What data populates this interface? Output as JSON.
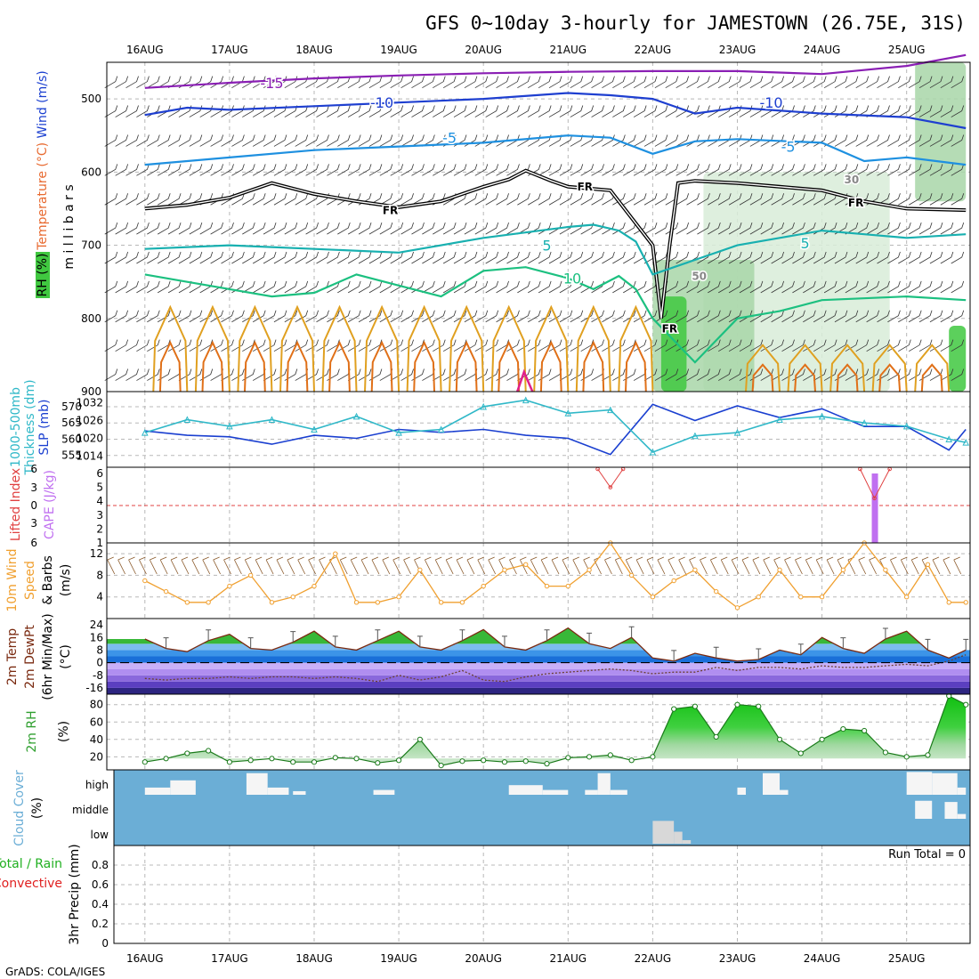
{
  "title": "GFS 0~10day 3-hourly for JAMESTOWN (26.75E, 31S)",
  "credit": "GrADS: COLA/IGES",
  "dates": [
    "16AUG",
    "17AUG",
    "18AUG",
    "19AUG",
    "20AUG",
    "21AUG",
    "22AUG",
    "23AUG",
    "24AUG",
    "25AUG"
  ],
  "colors": {
    "grid": "#b8b8b8",
    "temp_minus15": "#8a1fb4",
    "temp_minus10": "#1e3fd0",
    "temp_minus5": "#1e90e0",
    "freezing": "#000000",
    "temp_5": "#18b0b0",
    "temp_10": "#1cc080",
    "warm_a": "#e0a020",
    "warm_b": "#e07018",
    "warm_c": "#e0208a",
    "rh_light": "#d8ecd8",
    "rh_mid": "#a8d6a8",
    "rh_high": "#40c840",
    "slp": "#1a3fd0",
    "thickness": "#30b8c8",
    "wind_speed": "#f0a030",
    "cape_bar": "#c070f0",
    "lifted_index": "#e04040",
    "cloud_bg": "#6baed6",
    "cloud_fill": "#f5f5f5",
    "rh2m": "#30a030"
  },
  "chart_data": [
    {
      "panel": "upper_air",
      "type": "heatmap",
      "ylabel": "m i l l i b a r s",
      "side_labels": {
        "wind": "Wind (m/s)",
        "temp": "Temperature (°C)",
        "rh": "RH (%)"
      },
      "yticks": [
        500,
        600,
        700,
        800,
        900
      ],
      "ylim": [
        450,
        900
      ],
      "y_inverted": true,
      "contour_labels": [
        "-15",
        "-10",
        "-10",
        "-5",
        "-5",
        "5",
        "5",
        "10",
        "FR",
        "FR",
        "FR",
        "FR",
        "30",
        "50"
      ],
      "contours": [
        {
          "name": "-15",
          "color": "temp_minus15",
          "x": [
            0,
            1,
            2,
            3,
            4,
            5,
            6,
            7,
            8,
            9,
            9.7
          ],
          "y": [
            485,
            478,
            472,
            468,
            465,
            463,
            462,
            462,
            466,
            455,
            440
          ]
        },
        {
          "name": "-10",
          "color": "temp_minus10",
          "x": [
            0,
            0.5,
            1,
            2,
            3,
            4,
            5,
            5.5,
            6,
            6.5,
            7,
            8,
            9,
            9.7
          ],
          "y": [
            522,
            512,
            515,
            510,
            505,
            500,
            492,
            495,
            500,
            520,
            512,
            520,
            525,
            540
          ]
        },
        {
          "name": "-5",
          "color": "temp_minus5",
          "x": [
            0,
            1,
            2,
            3,
            4,
            5,
            5.5,
            6,
            6.5,
            7,
            8,
            8.5,
            9,
            9.7
          ],
          "y": [
            590,
            580,
            570,
            565,
            560,
            550,
            553,
            575,
            558,
            555,
            560,
            585,
            580,
            590
          ]
        },
        {
          "name": "FR",
          "color": "freezing",
          "x": [
            0,
            0.5,
            1,
            1.5,
            2,
            2.5,
            3,
            3.5,
            4,
            4.3,
            4.5,
            4.8,
            5,
            5.5,
            6.0,
            6.1,
            6.2,
            6.3,
            6.5,
            7,
            7.5,
            8,
            8.5,
            9,
            9.7
          ],
          "y": [
            650,
            645,
            635,
            615,
            630,
            640,
            648,
            640,
            620,
            610,
            598,
            612,
            620,
            625,
            700,
            800,
            700,
            615,
            612,
            615,
            620,
            625,
            640,
            650,
            652
          ]
        },
        {
          "name": "5",
          "color": "temp_5",
          "x": [
            0,
            1,
            2,
            3,
            4,
            5,
            5.3,
            5.6,
            5.8,
            6,
            6.5,
            7,
            7.5,
            8,
            8.5,
            9,
            9.7
          ],
          "y": [
            705,
            700,
            705,
            710,
            690,
            675,
            672,
            680,
            695,
            740,
            720,
            700,
            690,
            680,
            685,
            690,
            685
          ]
        },
        {
          "name": "10",
          "color": "temp_10",
          "x": [
            0,
            0.5,
            1,
            1.5,
            2,
            2.5,
            3,
            3.5,
            4,
            4.5,
            5,
            5.3,
            5.6,
            5.8,
            6,
            6.5,
            7,
            7.5,
            8,
            9,
            9.7
          ],
          "y": [
            740,
            750,
            760,
            770,
            765,
            740,
            755,
            770,
            735,
            730,
            745,
            760,
            742,
            760,
            800,
            860,
            800,
            790,
            775,
            770,
            775
          ]
        }
      ],
      "rh_patches": [
        {
          "x": [
            6.1,
            6.4
          ],
          "y": [
            770,
            900
          ],
          "level": "rh_high"
        },
        {
          "x": [
            6.0,
            7.2
          ],
          "y": [
            720,
            900
          ],
          "level": "rh_mid"
        },
        {
          "x": [
            6.6,
            8.8
          ],
          "y": [
            600,
            900
          ],
          "level": "rh_light"
        },
        {
          "x": [
            9.1,
            9.7
          ],
          "y": [
            450,
            640
          ],
          "level": "rh_mid"
        },
        {
          "x": [
            9.5,
            9.7
          ],
          "y": [
            810,
            900
          ],
          "level": "rh_high"
        }
      ],
      "x_range": [
        -0.45,
        9.75
      ]
    },
    {
      "panel": "slp_thickness",
      "type": "line",
      "ylabel_left": "Thickness (dm)",
      "ylabel_left_prefix": "1000-500mb",
      "ylabel_right": "SLP (mb)",
      "yticks_left": [
        555,
        560,
        565,
        570
      ],
      "yticks_right": [
        1014,
        1020,
        1026,
        1032
      ],
      "series": [
        {
          "name": "SLP (mb)",
          "color": "slp",
          "x": [
            0,
            0.5,
            1,
            1.5,
            2,
            2.5,
            3,
            3.5,
            4,
            4.5,
            5,
            5.5,
            6,
            6.5,
            7,
            7.5,
            8,
            8.5,
            9,
            9.5,
            9.7
          ],
          "values": [
            1022.5,
            1021,
            1020.5,
            1018,
            1021,
            1020,
            1023,
            1022,
            1023,
            1021,
            1020,
            1014.5,
            1031.5,
            1026,
            1031,
            1027,
            1030,
            1024,
            1024,
            1016,
            1023
          ]
        },
        {
          "name": "Thickness (dm)",
          "color": "thickness",
          "x": [
            0,
            0.5,
            1,
            1.5,
            2,
            2.5,
            3,
            3.5,
            4,
            4.5,
            5,
            5.5,
            6,
            6.5,
            7,
            7.5,
            8,
            8.5,
            9,
            9.5,
            9.7
          ],
          "values": [
            562,
            566,
            564,
            566,
            563,
            567,
            562,
            563,
            570,
            572,
            568,
            569,
            556,
            561,
            562,
            566,
            567,
            565,
            564,
            560,
            559
          ]
        }
      ]
    },
    {
      "panel": "cape_li",
      "type": "bar",
      "ylabel_left": "Lifted Index",
      "ylabel_right": "CAPE (J/kg)",
      "yticks_left": [
        "6",
        "3",
        "0",
        "3",
        "6"
      ],
      "yticks_right": [
        "1",
        "2",
        "3",
        "4",
        "5",
        "6"
      ],
      "bars": [
        {
          "x": 8.62,
          "value": 6
        }
      ],
      "li_series": {
        "x": [
          5.35,
          5.5,
          5.65,
          8.45,
          8.62,
          8.8
        ],
        "values": [
          -6,
          -3,
          -6,
          -6,
          -1.2,
          -6
        ]
      },
      "zero_line": true
    },
    {
      "panel": "wind10m",
      "type": "line",
      "ylabel": "10m Wind Speed & Barbs (m/s)",
      "yticks": [
        4,
        8,
        12
      ],
      "ylim": [
        0,
        14
      ],
      "x": [
        0,
        0.25,
        0.5,
        0.75,
        1,
        1.25,
        1.5,
        1.75,
        2,
        2.25,
        2.5,
        2.75,
        3,
        3.25,
        3.5,
        3.75,
        4,
        4.25,
        4.5,
        4.75,
        5,
        5.25,
        5.5,
        5.75,
        6,
        6.25,
        6.5,
        6.75,
        7,
        7.25,
        7.5,
        7.75,
        8,
        8.25,
        8.5,
        8.75,
        9,
        9.25,
        9.5,
        9.7
      ],
      "values": [
        7,
        5,
        3,
        3,
        6,
        8,
        3,
        4,
        6,
        12,
        3,
        3,
        4,
        9,
        3,
        3,
        6,
        9,
        10,
        6,
        6,
        9,
        14,
        8,
        4,
        7,
        9,
        5,
        2,
        4,
        9,
        4,
        4,
        9,
        14,
        9,
        4,
        10,
        3,
        3
      ]
    },
    {
      "panel": "temp2m",
      "type": "area",
      "ylabel": "2m Temp 2m DewPt (6hr Min/Max) (°C)",
      "yticks": [
        -16,
        -8,
        0,
        8,
        16,
        24
      ],
      "ylim": [
        -20,
        28
      ],
      "x": [
        0,
        0.25,
        0.5,
        0.75,
        1,
        1.25,
        1.5,
        1.75,
        2,
        2.25,
        2.5,
        2.75,
        3,
        3.25,
        3.5,
        3.75,
        4,
        4.25,
        4.5,
        4.75,
        5,
        5.25,
        5.5,
        5.75,
        6,
        6.25,
        6.5,
        6.75,
        7,
        7.25,
        7.5,
        7.75,
        8,
        8.25,
        8.5,
        8.75,
        9,
        9.25,
        9.5,
        9.7
      ],
      "temp": [
        15,
        9,
        7,
        14,
        18,
        9,
        8,
        13,
        20,
        10,
        8,
        14,
        20,
        10,
        8,
        14,
        21,
        10,
        8,
        14,
        22,
        12,
        9,
        16,
        3,
        1,
        6,
        3,
        1,
        2,
        8,
        5,
        16,
        9,
        6,
        15,
        20,
        8,
        3,
        8
      ],
      "dewpt": [
        -10,
        -11,
        -10,
        -10,
        -9,
        -10,
        -9,
        -9,
        -10,
        -9,
        -10,
        -12,
        -8,
        -11,
        -9,
        -5,
        -11,
        -12,
        -9,
        -7,
        -6,
        -5,
        -4,
        -5,
        -7,
        -6,
        -6,
        -3,
        -5,
        -3,
        -3,
        -4,
        -2,
        -3,
        -3,
        -2,
        -1,
        -2,
        1,
        5
      ]
    },
    {
      "panel": "rh2m",
      "type": "area",
      "ylabel": "2m RH (%)",
      "yticks": [
        20,
        40,
        60,
        80
      ],
      "ylim": [
        5,
        92
      ],
      "x": [
        0,
        0.25,
        0.5,
        0.75,
        1,
        1.25,
        1.5,
        1.75,
        2,
        2.25,
        2.5,
        2.75,
        3,
        3.25,
        3.5,
        3.75,
        4,
        4.25,
        4.5,
        4.75,
        5,
        5.25,
        5.5,
        5.75,
        6,
        6.25,
        6.5,
        6.75,
        7,
        7.25,
        7.5,
        7.75,
        8,
        8.25,
        8.5,
        8.75,
        9,
        9.25,
        9.5,
        9.7
      ],
      "values": [
        14,
        18,
        24,
        27,
        14,
        16,
        18,
        14,
        14,
        19,
        18,
        13,
        16,
        40,
        10,
        15,
        16,
        14,
        15,
        12,
        19,
        20,
        22,
        16,
        20,
        75,
        78,
        43,
        80,
        78,
        40,
        24,
        40,
        52,
        50,
        25,
        20,
        22,
        90,
        80
      ]
    },
    {
      "panel": "cloud",
      "type": "bar",
      "ylabel": "Cloud Cover (%)",
      "yticks": [
        "high",
        "middle",
        "low"
      ],
      "layers": {
        "high": [
          {
            "x": [
              0.0,
              0.3
            ],
            "value": 0.3
          },
          {
            "x": [
              0.3,
              0.6
            ],
            "value": 0.6
          },
          {
            "x": [
              1.2,
              1.45
            ],
            "value": 0.9
          },
          {
            "x": [
              1.45,
              1.7
            ],
            "value": 0.3
          },
          {
            "x": [
              1.75,
              1.9
            ],
            "value": 0.15
          },
          {
            "x": [
              2.7,
              2.95
            ],
            "value": 0.2
          },
          {
            "x": [
              4.3,
              4.7
            ],
            "value": 0.4
          },
          {
            "x": [
              4.7,
              5.0
            ],
            "value": 0.2
          },
          {
            "x": [
              5.2,
              5.35
            ],
            "value": 0.2
          },
          {
            "x": [
              5.35,
              5.5
            ],
            "value": 0.9
          },
          {
            "x": [
              5.5,
              5.7
            ],
            "value": 0.2
          },
          {
            "x": [
              7.0,
              7.1
            ],
            "value": 0.3
          },
          {
            "x": [
              7.3,
              7.5
            ],
            "value": 0.9
          },
          {
            "x": [
              7.5,
              7.6
            ],
            "value": 0.2
          },
          {
            "x": [
              9.0,
              9.3
            ],
            "value": 0.95
          },
          {
            "x": [
              9.3,
              9.6
            ],
            "value": 0.9
          },
          {
            "x": [
              9.6,
              9.7
            ],
            "value": 0.3
          }
        ],
        "middle": [
          {
            "x": [
              9.1,
              9.3
            ],
            "value": 0.75
          },
          {
            "x": [
              9.45,
              9.6
            ],
            "value": 0.7
          },
          {
            "x": [
              9.6,
              9.7
            ],
            "value": 0.2
          }
        ],
        "low": [
          {
            "x": [
              6.0,
              6.25
            ],
            "value": 0.95
          },
          {
            "x": [
              6.25,
              6.35
            ],
            "value": 0.5
          },
          {
            "x": [
              6.35,
              6.45
            ],
            "value": 0.15
          }
        ]
      }
    },
    {
      "panel": "precip",
      "type": "bar",
      "ylabel": "3hr Precip (mm)",
      "side_labels": [
        "Total / Rain",
        "Convective"
      ],
      "yticks": [
        0,
        0.2,
        0.4,
        0.6,
        0.8
      ],
      "ylim": [
        0,
        1
      ],
      "run_total_label": "Run Total = 0",
      "values": []
    }
  ]
}
